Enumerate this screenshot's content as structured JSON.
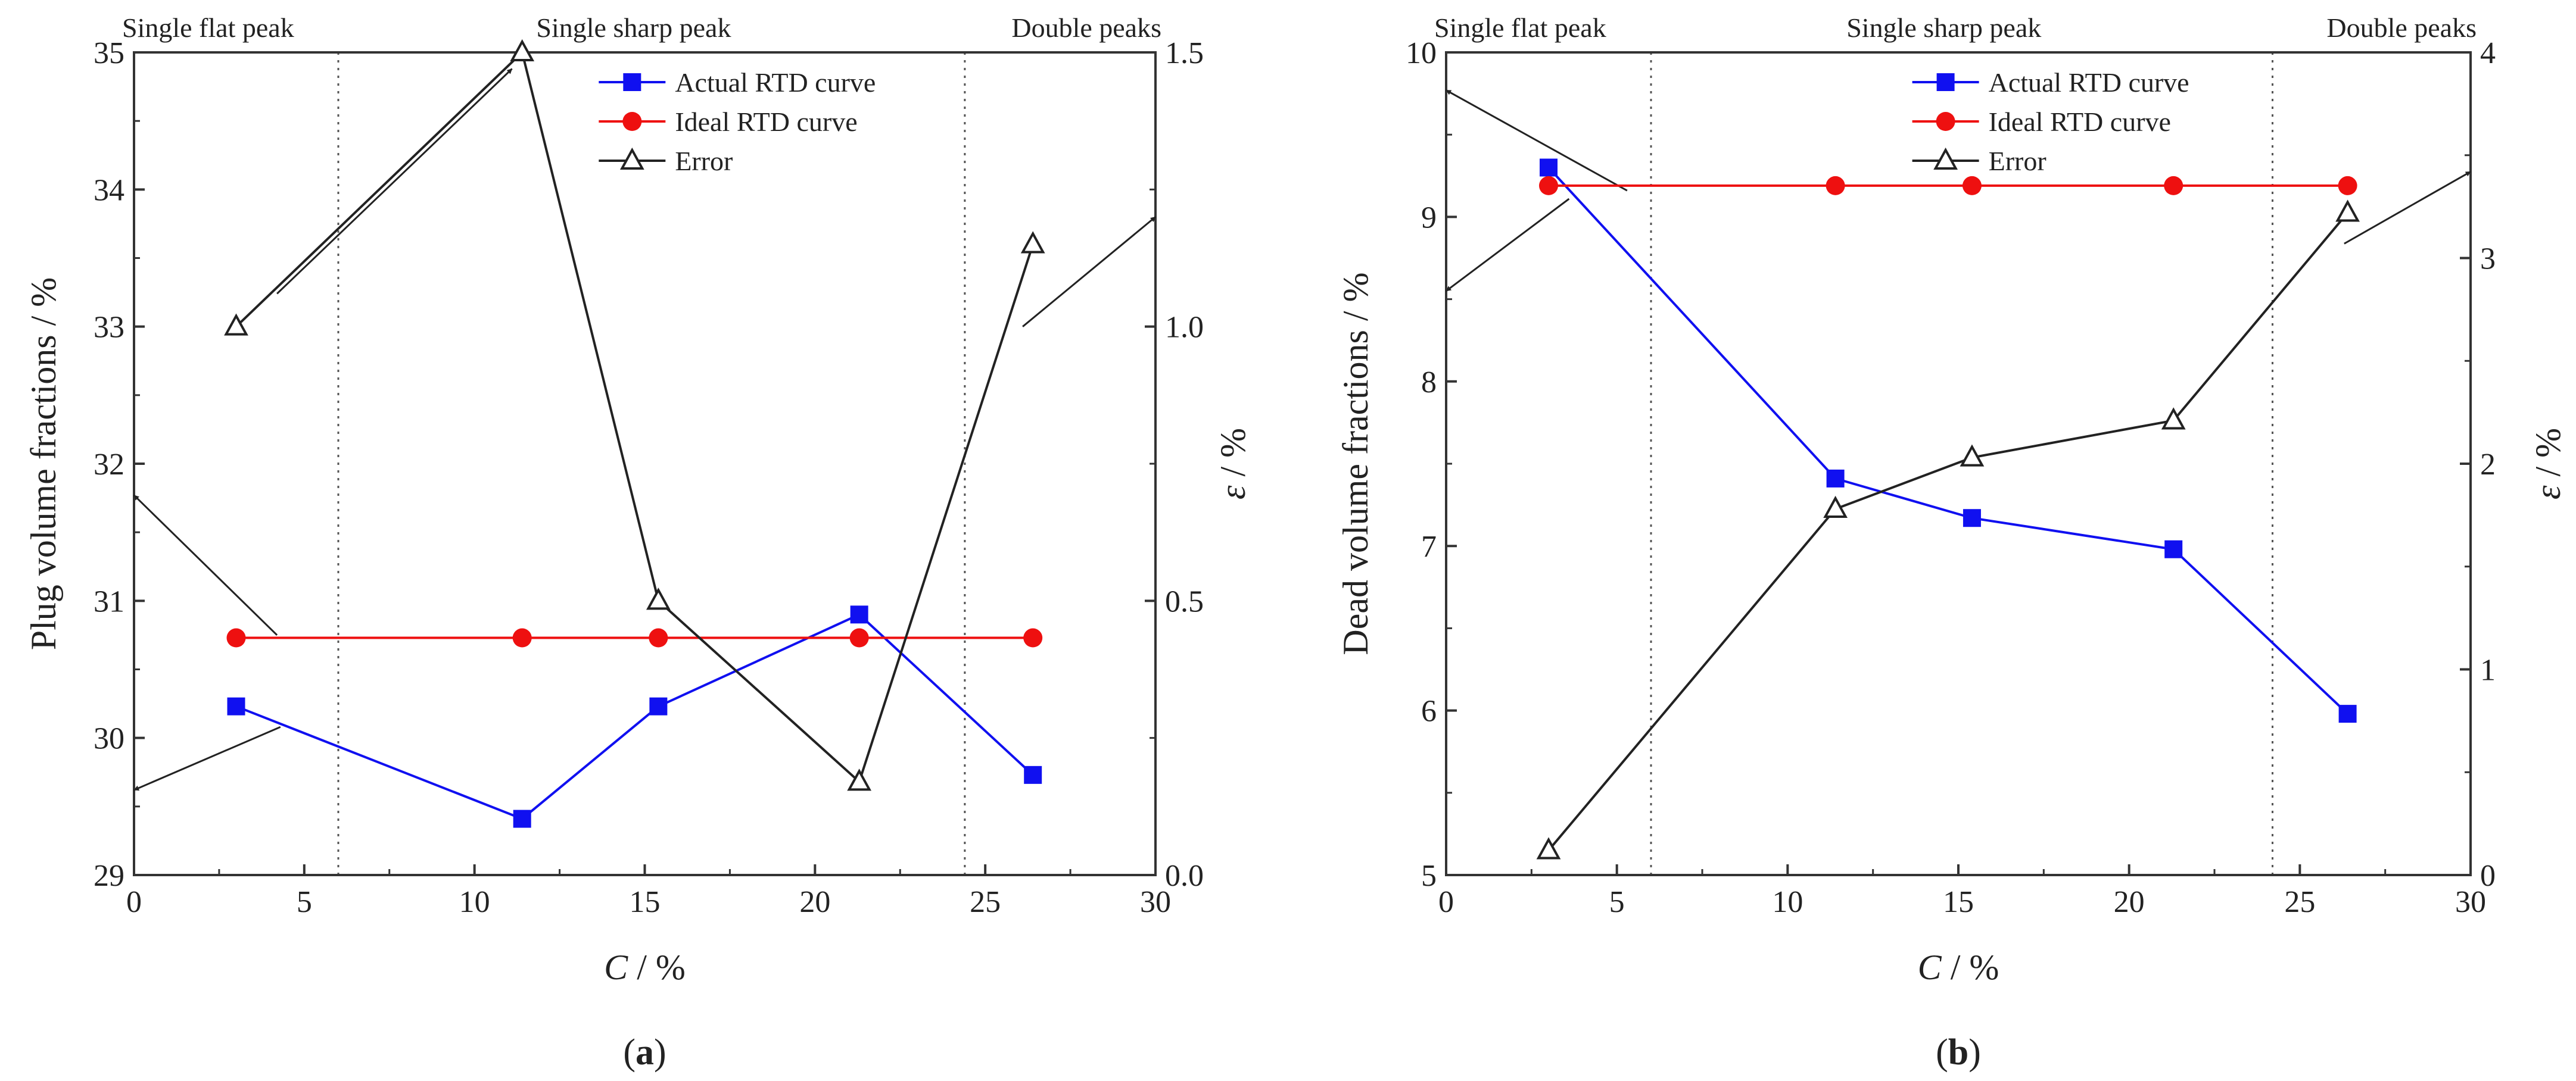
{
  "colors": {
    "actual": "#1010f0",
    "ideal": "#ee1010",
    "error": "#222222"
  },
  "chart_data": [
    {
      "type": "line",
      "panel_label": "a",
      "xlabel_var": "C",
      "xlabel_unit": " / %",
      "xlim": [
        0,
        30
      ],
      "xticks": [
        "0",
        "5",
        "10",
        "15",
        "20",
        "25",
        "30"
      ],
      "ylabel": "Plug volume fractions / %",
      "ylim": [
        29,
        35
      ],
      "yticks": [
        "29",
        "30",
        "31",
        "32",
        "33",
        "34",
        "35"
      ],
      "y2label_var": "ε",
      "y2label_unit": " / %",
      "y2lim": [
        0,
        1.5
      ],
      "y2ticks": [
        "0.0",
        "0.5",
        "1.0",
        "1.5"
      ],
      "regions": [
        "Single flat peak",
        "Single sharp peak",
        "Double peaks"
      ],
      "boundaries": [
        6,
        24.4
      ],
      "x": [
        3,
        11.4,
        15.4,
        21.3,
        26.4
      ],
      "series": [
        {
          "name": "Actual RTD curve",
          "axis": "left",
          "values": [
            30.23,
            29.41,
            30.23,
            30.9,
            29.73
          ]
        },
        {
          "name": "Ideal RTD curve",
          "axis": "left",
          "values": [
            30.73,
            30.73,
            30.73,
            30.73,
            30.73
          ]
        },
        {
          "name": "Error",
          "axis": "right",
          "values": [
            1.0,
            1.5,
            0.5,
            0.17,
            1.15
          ]
        }
      ],
      "arrows": [
        {
          "from_x": 4.2,
          "from_y2": 1.06,
          "to_x": 11.1,
          "to_y2": 1.47
        },
        {
          "from_x": 4.3,
          "from_y": 30.08,
          "to_x": 0,
          "to_y": 29.62
        },
        {
          "from_x": 4.2,
          "from_y": 30.75,
          "to_x": 0,
          "to_y": 31.77
        },
        {
          "from_x": 26.1,
          "from_y2": 1.0,
          "to_x": 30,
          "to_y2": 1.2
        }
      ]
    },
    {
      "type": "line",
      "panel_label": "b",
      "xlabel_var": "C",
      "xlabel_unit": " / %",
      "xlim": [
        0,
        30
      ],
      "xticks": [
        "0",
        "5",
        "10",
        "15",
        "20",
        "25",
        "30"
      ],
      "ylabel": "Dead volume fractions / %",
      "ylim": [
        5,
        10
      ],
      "yticks": [
        "5",
        "6",
        "7",
        "8",
        "9",
        "10"
      ],
      "y2label_var": "ε",
      "y2label_unit": " / %",
      "y2lim": [
        0,
        4
      ],
      "y2ticks": [
        "0",
        "1",
        "2",
        "3",
        "4"
      ],
      "regions": [
        "Single flat peak",
        "Single sharp peak",
        "Double peaks"
      ],
      "boundaries": [
        6,
        24.2
      ],
      "x": [
        3,
        11.4,
        15.4,
        21.3,
        26.4
      ],
      "series": [
        {
          "name": "Actual RTD curve",
          "axis": "left",
          "values": [
            9.3,
            7.41,
            7.17,
            6.98,
            5.98
          ]
        },
        {
          "name": "Ideal RTD curve",
          "axis": "left",
          "values": [
            9.19,
            9.19,
            9.19,
            9.19,
            9.19
          ]
        },
        {
          "name": "Error",
          "axis": "right",
          "values": [
            0.12,
            1.78,
            2.03,
            2.21,
            3.22
          ]
        }
      ],
      "arrows": [
        {
          "from_x": 5.3,
          "from_y": 9.16,
          "to_x": 0,
          "to_y": 9.77
        },
        {
          "from_x": 3.6,
          "from_y": 9.11,
          "to_x": 0,
          "to_y": 8.55
        },
        {
          "from_x": 26.3,
          "from_y2": 3.07,
          "to_x": 30,
          "to_y2": 3.42
        }
      ]
    }
  ]
}
